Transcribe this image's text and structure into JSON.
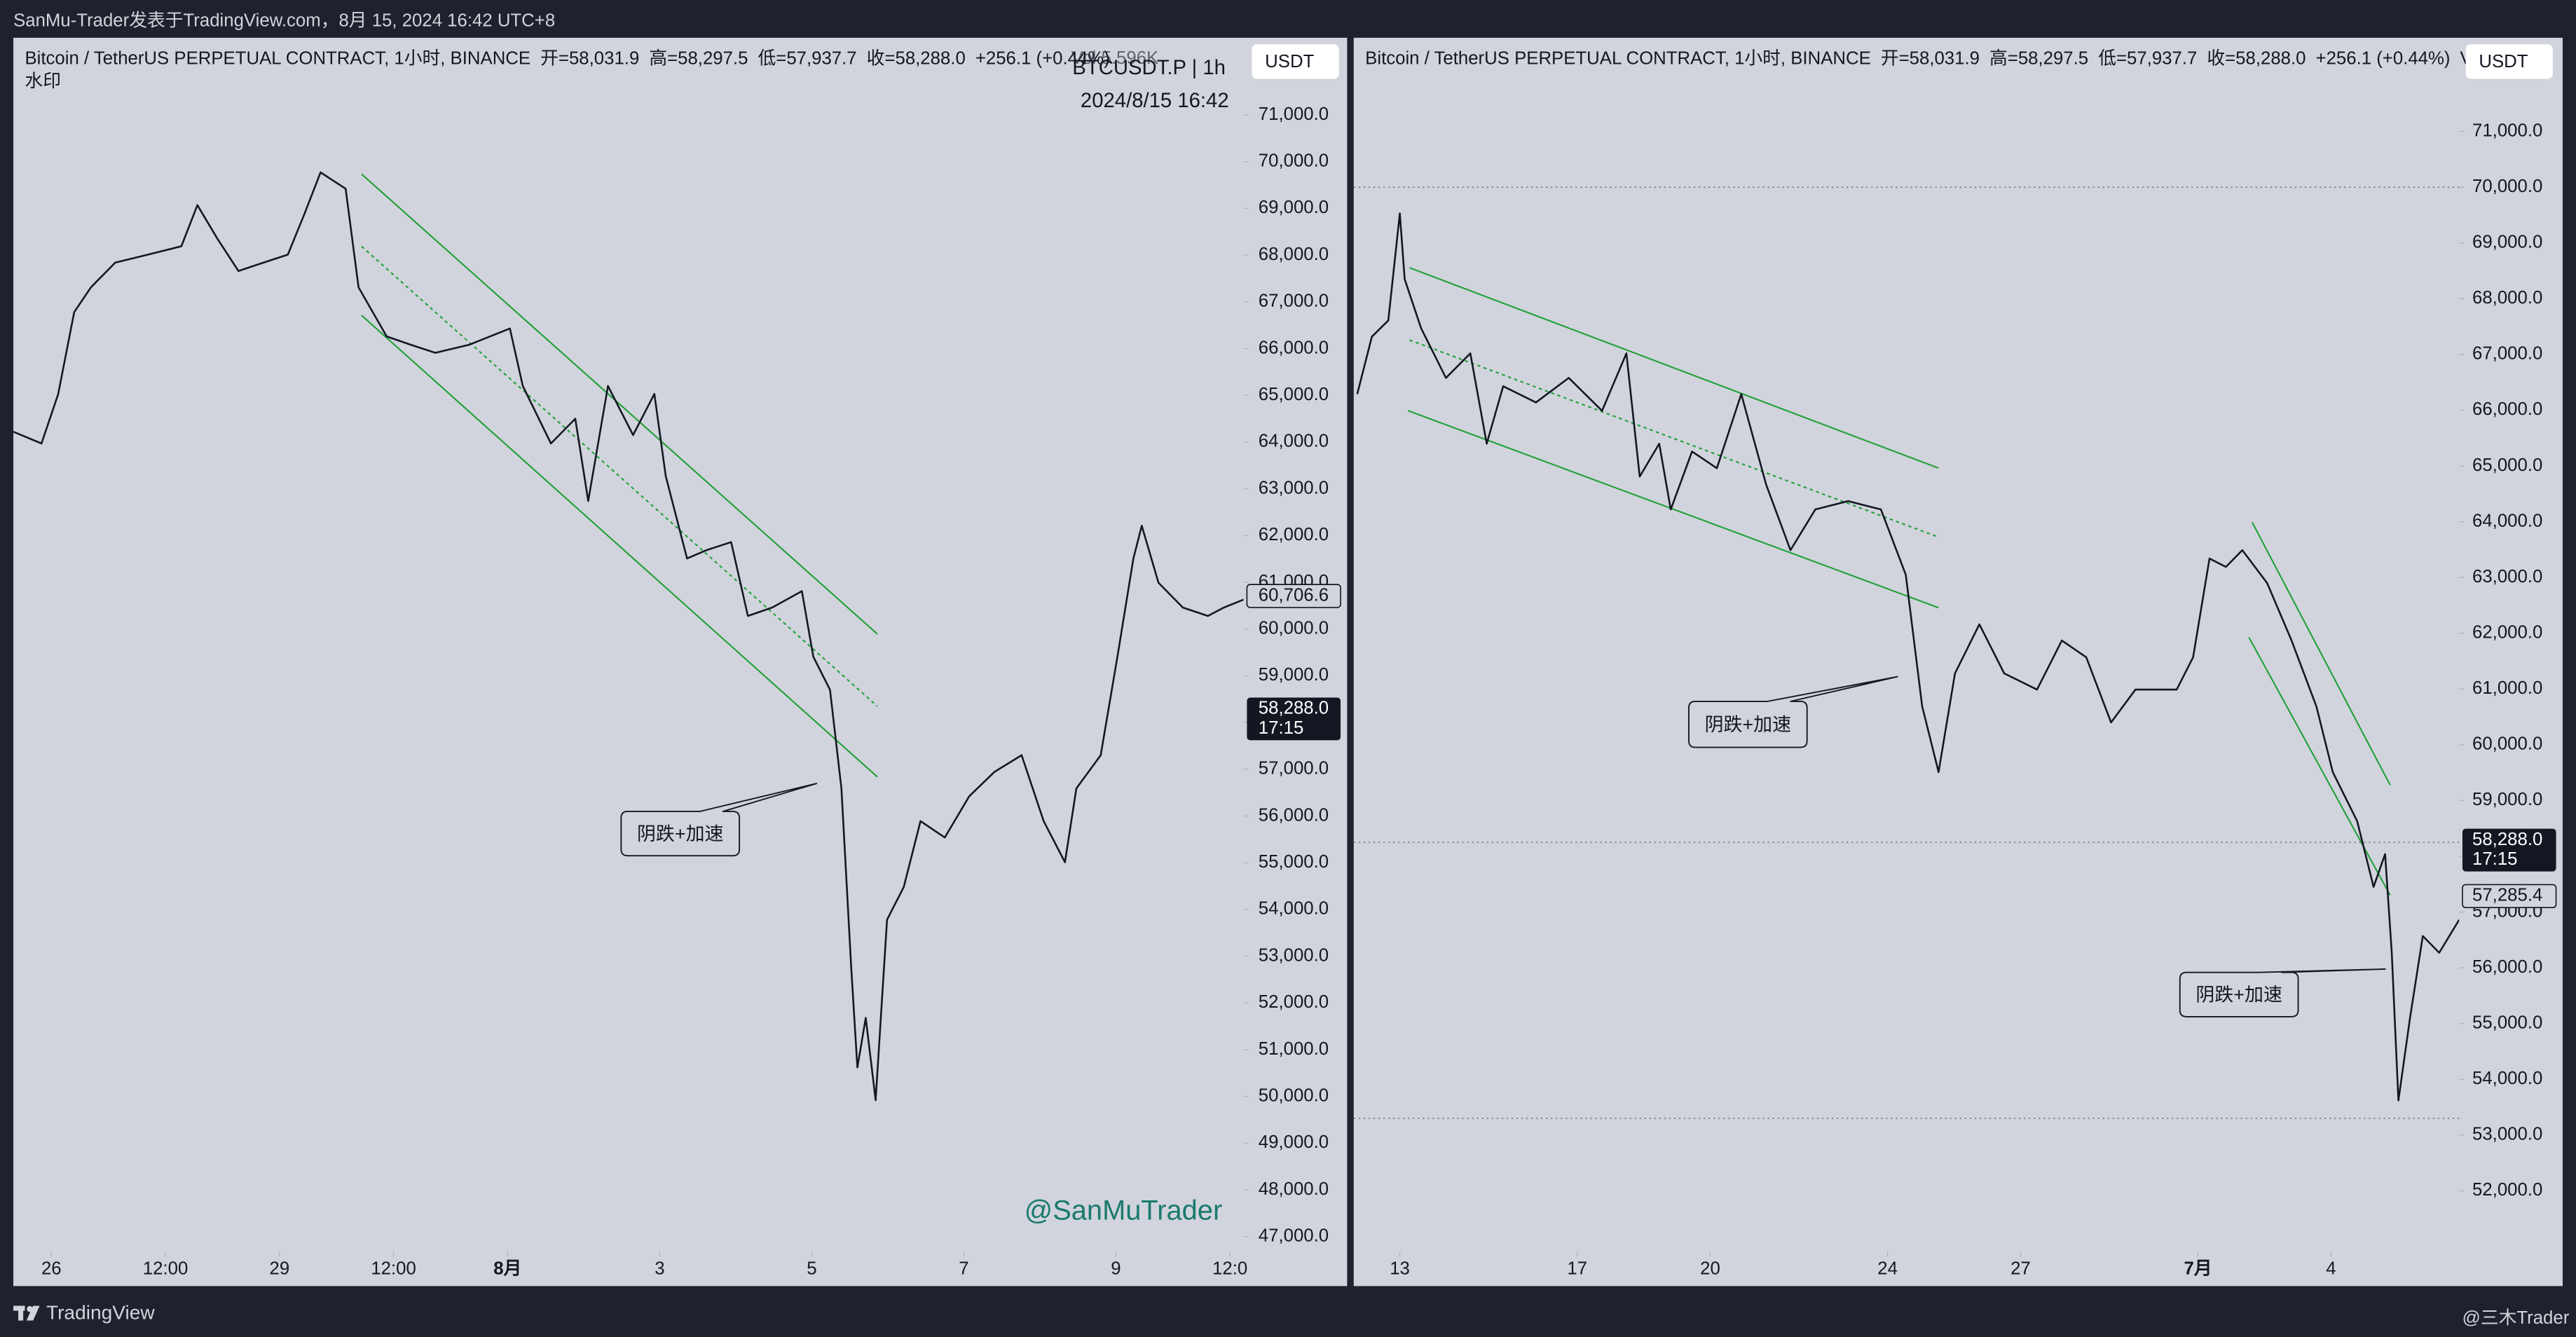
{
  "page": {
    "top_bar": "SanMu-Trader发表于TradingView.com，8月 15, 2024 16:42 UTC+8",
    "brand": "TradingView",
    "credit": "@三木Trader"
  },
  "chart_data": [
    {
      "type": "line",
      "title": "Bitcoin / TetherUS PERPETUAL CONTRACT, 1小时, BINANCE",
      "legend_values": [
        "开=58,031.9",
        "高=58,297.5",
        "低=57,937.7",
        "收=58,288.0",
        "+256.1 (+0.44%)"
      ],
      "volume_label": "Vol 5.596K",
      "subtitle": "水印",
      "symbol_label": "BTCUSDT.P | 1h",
      "timestamp": "2024/8/15 16:42",
      "currency": "USDT",
      "watermark": "@SanMuTrader",
      "annotations": [
        "阴跌+加速"
      ],
      "color": "#131722",
      "x": [
        25.5,
        25.87,
        26.09,
        26.3,
        26.52,
        26.84,
        27.27,
        27.71,
        27.92,
        28.18,
        28.46,
        28.79,
        29.11,
        29.33,
        29.54,
        29.87,
        30.04,
        30.41,
        30.73,
        31.05,
        31.49,
        32.03,
        32.2,
        32.57,
        32.89,
        33.06,
        33.32,
        33.65,
        33.93,
        34.08,
        34.36,
        34.62,
        34.94,
        35.16,
        35.48,
        35.87,
        36.02,
        36.24,
        36.39,
        36.52,
        36.6,
        36.71,
        36.84,
        36.99,
        37.21,
        37.43,
        37.75,
        38.07,
        38.4,
        38.76,
        39.05,
        39.33,
        39.48,
        39.8,
        40.02,
        40.23,
        40.34,
        40.56,
        40.88,
        41.21,
        41.42,
        41.68
      ],
      "values": [
        64220,
        63970,
        65030,
        66780,
        67310,
        67840,
        68010,
        68190,
        69070,
        68360,
        67660,
        67840,
        68010,
        68890,
        69770,
        69420,
        67310,
        66260,
        66080,
        65910,
        66080,
        66430,
        65200,
        63970,
        64500,
        62740,
        65200,
        64150,
        65030,
        63270,
        61510,
        61690,
        61860,
        60280,
        60460,
        60810,
        59410,
        58700,
        56590,
        52730,
        50620,
        51680,
        49920,
        53780,
        54480,
        55890,
        55540,
        56420,
        56940,
        57300,
        55890,
        55010,
        56590,
        57300,
        59410,
        61510,
        62210,
        60990,
        60460,
        60280,
        60460,
        60630
      ],
      "price_labels": [
        {
          "value": 60706.6,
          "label": "60,706.6"
        }
      ],
      "last_price": {
        "value": 58288.0,
        "label": "58,288.0"
      },
      "countdown": "17:15",
      "xlim": [
        25.5,
        41.68
      ],
      "ylim": [
        46680,
        72650
      ],
      "xticks": [
        26,
        {
          "value": 27.5,
          "label": "12:00"
        },
        29,
        {
          "value": 30.5,
          "label": "12:00"
        },
        {
          "value": 32,
          "label": "8月"
        },
        {
          "value": 34,
          "label": "3"
        },
        {
          "value": 36,
          "label": "5"
        },
        {
          "value": 38,
          "label": "7"
        },
        {
          "value": 40,
          "label": "9"
        },
        {
          "value": 41.5,
          "label": "12:0"
        }
      ],
      "yticks": [
        {
          "value": 47000,
          "label": "47,000.0"
        },
        {
          "value": 48000,
          "label": "48,000.0"
        },
        {
          "value": 49000,
          "label": "49,000.0"
        },
        {
          "value": 50000,
          "label": "50,000.0"
        },
        {
          "value": 51000,
          "label": "51,000.0"
        },
        {
          "value": 52000,
          "label": "52,000.0"
        },
        {
          "value": 53000,
          "label": "53,000.0"
        },
        {
          "value": 54000,
          "label": "54,000.0"
        },
        {
          "value": 55000,
          "label": "55,000.0"
        },
        {
          "value": 56000,
          "label": "56,000.0"
        },
        {
          "value": 57000,
          "label": "57,000.0"
        },
        {
          "value": 58000,
          "label": "58,000.0"
        },
        {
          "value": 59000,
          "label": "59,000.0"
        },
        {
          "value": 60000,
          "label": "60,000.0"
        },
        {
          "value": 61000,
          "label": "61,000.0"
        },
        {
          "value": 62000,
          "label": "62,000.0"
        },
        {
          "value": 63000,
          "label": "63,000.0"
        },
        {
          "value": 64000,
          "label": "64,000.0"
        },
        {
          "value": 65000,
          "label": "65,000.0"
        },
        {
          "value": 66000,
          "label": "66,000.0"
        },
        {
          "value": 67000,
          "label": "67,000.0"
        },
        {
          "value": 68000,
          "label": "68,000.0"
        },
        {
          "value": 69000,
          "label": "69,000.0"
        },
        {
          "value": 70000,
          "label": "70,000.0"
        },
        {
          "value": 71000,
          "label": "71,000.0"
        }
      ]
    },
    {
      "type": "line",
      "title": "Bitcoin / TetherUS PERPETUAL CONTRACT, 1小时, BINANCE",
      "legend_values": [
        "开=58,031.9",
        "高=58,297.5",
        "低=57,937.7",
        "收=58,288.0",
        "+256.1 (+0.44%)"
      ],
      "volume_label": "Vol...",
      "currency": "USDT",
      "annotations": [
        "阴跌+加速",
        "阴跌+加速"
      ],
      "color": "#131722",
      "x": [
        12.04,
        12.37,
        12.74,
        13.0,
        13.11,
        13.48,
        14.04,
        14.59,
        14.96,
        15.33,
        16.07,
        16.81,
        17.56,
        18.11,
        18.41,
        18.85,
        19.11,
        19.59,
        20.15,
        20.7,
        21.26,
        21.81,
        22.37,
        23.11,
        23.85,
        24.41,
        24.78,
        25.15,
        25.52,
        26.07,
        26.63,
        27.37,
        27.93,
        28.48,
        29.04,
        29.59,
        30.52,
        30.89,
        31.26,
        31.63,
        32.0,
        32.56,
        33.11,
        33.67,
        34.04,
        34.59,
        34.96,
        35.22,
        35.37,
        35.52,
        35.78,
        36.07,
        36.44,
        36.89
      ],
      "values": [
        66290,
        67320,
        67610,
        69530,
        68350,
        67470,
        66580,
        67020,
        65400,
        66430,
        66140,
        66580,
        65990,
        67020,
        64810,
        65400,
        64220,
        65260,
        64960,
        66290,
        64670,
        63490,
        64220,
        64370,
        64220,
        63050,
        60690,
        59510,
        61280,
        62160,
        61280,
        60990,
        61870,
        61570,
        60400,
        60990,
        60990,
        61570,
        63340,
        63190,
        63490,
        62900,
        61870,
        60690,
        59510,
        58630,
        57450,
        58040,
        56270,
        53620,
        55090,
        56570,
        56270,
        56860
      ],
      "hlines": [
        70000,
        58250,
        53300
      ],
      "price_labels": [
        {
          "value": 57285.4,
          "label": "57,285.4"
        }
      ],
      "last_price": {
        "value": 58288.0,
        "label": "58,288.0"
      },
      "countdown": "17:15",
      "xlim": [
        11.96,
        36.89
      ],
      "ylim": [
        50910,
        72680
      ],
      "xticks": [
        13,
        17,
        20,
        24,
        27,
        {
          "value": 31,
          "label": "7月"
        },
        {
          "value": 34,
          "label": "4"
        }
      ],
      "yticks": [
        {
          "value": 52000,
          "label": "52,000.0"
        },
        {
          "value": 53000,
          "label": "53,000.0"
        },
        {
          "value": 54000,
          "label": "54,000.0"
        },
        {
          "value": 55000,
          "label": "55,000.0"
        },
        {
          "value": 56000,
          "label": "56,000.0"
        },
        {
          "value": 57000,
          "label": "57,000.0"
        },
        {
          "value": 58000,
          "label": "58,000.0"
        },
        {
          "value": 59000,
          "label": "59,000.0"
        },
        {
          "value": 60000,
          "label": "60,000.0"
        },
        {
          "value": 61000,
          "label": "61,000.0"
        },
        {
          "value": 62000,
          "label": "62,000.0"
        },
        {
          "value": 63000,
          "label": "63,000.0"
        },
        {
          "value": 64000,
          "label": "64,000.0"
        },
        {
          "value": 65000,
          "label": "65,000.0"
        },
        {
          "value": 66000,
          "label": "66,000.0"
        },
        {
          "value": 67000,
          "label": "67,000.0"
        },
        {
          "value": 68000,
          "label": "68,000.0"
        },
        {
          "value": 69000,
          "label": "69,000.0"
        },
        {
          "value": 70000,
          "label": "70,000.0"
        },
        {
          "value": 71000,
          "label": "71,000.0"
        }
      ]
    }
  ]
}
